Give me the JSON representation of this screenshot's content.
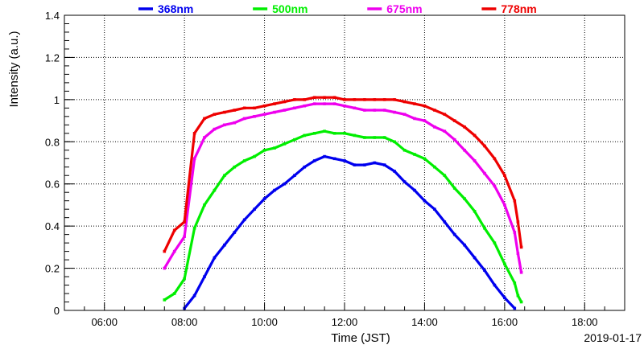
{
  "chart_data": {
    "type": "scatter",
    "title": "",
    "xlabel": "Time (JST)",
    "ylabel": "Intensity (a.u.)",
    "date": "2019-01-17",
    "xlim": [
      "05:00",
      "19:00"
    ],
    "ylim": [
      0,
      1.4
    ],
    "x_ticks": [
      "06:00",
      "08:00",
      "10:00",
      "12:00",
      "14:00",
      "16:00",
      "18:00"
    ],
    "y_ticks": [
      "0",
      "0.2",
      "0.4",
      "0.6",
      "0.8",
      "1",
      "1.2",
      "1.4"
    ],
    "grid": true,
    "legend_position": "top",
    "x": [
      "07:30",
      "07:45",
      "08:00",
      "08:15",
      "08:30",
      "08:45",
      "09:00",
      "09:15",
      "09:30",
      "09:45",
      "10:00",
      "10:15",
      "10:30",
      "10:45",
      "11:00",
      "11:15",
      "11:30",
      "11:45",
      "12:00",
      "12:15",
      "12:30",
      "12:45",
      "13:00",
      "13:15",
      "13:30",
      "13:45",
      "14:00",
      "14:15",
      "14:30",
      "14:45",
      "15:00",
      "15:15",
      "15:30",
      "15:45",
      "16:00",
      "16:15",
      "16:20",
      "16:25"
    ],
    "series": [
      {
        "name": "368nm",
        "color": "#0000ee",
        "values": [
          null,
          null,
          0.01,
          0.07,
          0.16,
          0.25,
          0.31,
          0.37,
          0.43,
          0.48,
          0.53,
          0.57,
          0.6,
          0.64,
          0.68,
          0.71,
          0.73,
          0.72,
          0.71,
          0.69,
          0.69,
          0.7,
          0.69,
          0.66,
          0.61,
          0.57,
          0.52,
          0.48,
          0.42,
          0.36,
          0.31,
          0.25,
          0.19,
          0.12,
          0.06,
          0.01,
          null,
          null
        ]
      },
      {
        "name": "500nm",
        "color": "#00ee00",
        "values": [
          0.05,
          0.08,
          0.15,
          0.39,
          0.5,
          0.57,
          0.64,
          0.68,
          0.71,
          0.73,
          0.76,
          0.77,
          0.79,
          0.81,
          0.83,
          0.84,
          0.85,
          0.84,
          0.84,
          0.83,
          0.82,
          0.82,
          0.82,
          0.8,
          0.76,
          0.74,
          0.72,
          0.68,
          0.64,
          0.58,
          0.53,
          0.47,
          0.39,
          0.32,
          0.22,
          0.13,
          0.07,
          0.04
        ]
      },
      {
        "name": "675nm",
        "color": "#ee00ee",
        "values": [
          0.2,
          0.28,
          0.35,
          0.72,
          0.82,
          0.86,
          0.88,
          0.89,
          0.91,
          0.92,
          0.93,
          0.94,
          0.95,
          0.96,
          0.97,
          0.98,
          0.98,
          0.98,
          0.97,
          0.96,
          0.95,
          0.95,
          0.95,
          0.94,
          0.93,
          0.91,
          0.9,
          0.87,
          0.85,
          0.81,
          0.76,
          0.71,
          0.65,
          0.59,
          0.5,
          0.37,
          0.27,
          0.18
        ]
      },
      {
        "name": "778nm",
        "color": "#ee0000",
        "values": [
          0.28,
          0.38,
          0.42,
          0.84,
          0.91,
          0.93,
          0.94,
          0.95,
          0.96,
          0.96,
          0.97,
          0.98,
          0.99,
          1.0,
          1.0,
          1.01,
          1.01,
          1.01,
          1.0,
          1.0,
          1.0,
          1.0,
          1.0,
          1.0,
          0.99,
          0.98,
          0.97,
          0.95,
          0.93,
          0.9,
          0.87,
          0.83,
          0.78,
          0.72,
          0.64,
          0.52,
          0.42,
          0.3
        ]
      }
    ]
  }
}
